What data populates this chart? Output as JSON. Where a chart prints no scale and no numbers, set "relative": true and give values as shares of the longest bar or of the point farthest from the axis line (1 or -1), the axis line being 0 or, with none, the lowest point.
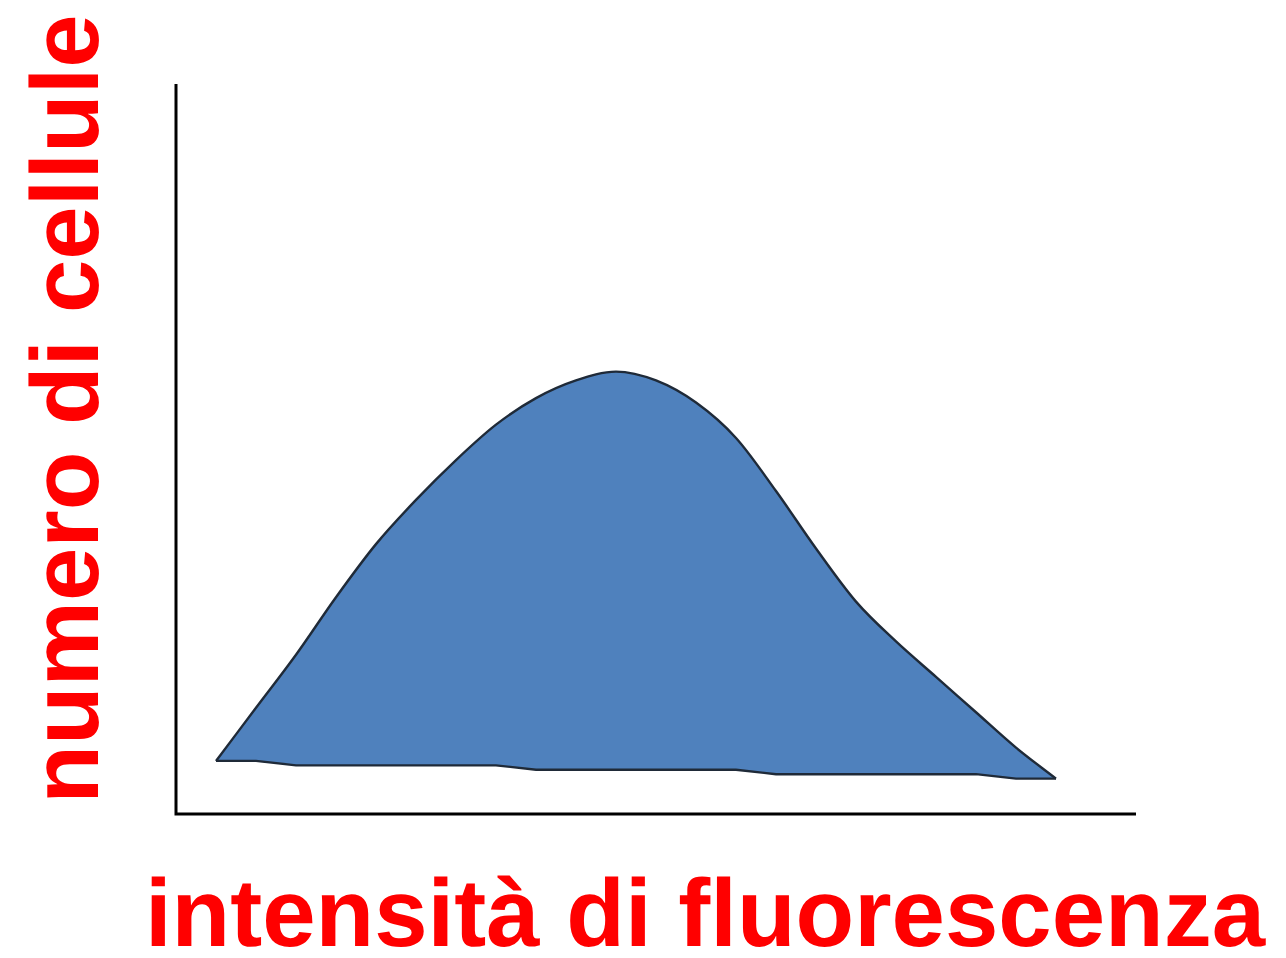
{
  "chart_data": {
    "type": "area",
    "relative": true,
    "xlabel": "intensità di fluorescenza",
    "ylabel": "numero di cellule",
    "legend": false,
    "categories": [
      null,
      null,
      null,
      null,
      null,
      null,
      null,
      null,
      null,
      null,
      null,
      null,
      null,
      null,
      null,
      null,
      null,
      null,
      null,
      null,
      null,
      null,
      null,
      null,
      null
    ],
    "series": [
      {
        "type": "line",
        "color": "#1f2a38",
        "values": [
          null,
          0.12,
          0.12,
          0.11,
          0.11,
          0.11,
          0.11,
          0.11,
          0.11,
          0.1,
          0.1,
          0.1,
          0.1,
          0.1,
          0.1,
          0.09,
          0.09,
          0.09,
          0.09,
          0.09,
          0.09,
          0.08,
          0.08,
          null,
          null
        ]
      },
      {
        "color": "#4f81bd",
        "values": [
          null,
          0.12,
          0.24,
          0.36,
          0.49,
          0.61,
          0.71,
          0.8,
          0.88,
          0.94,
          0.98,
          1,
          0.98,
          0.93,
          0.85,
          0.73,
          0.6,
          0.48,
          0.39,
          0.31,
          0.23,
          0.15,
          0.08,
          null,
          null
        ]
      }
    ]
  }
}
